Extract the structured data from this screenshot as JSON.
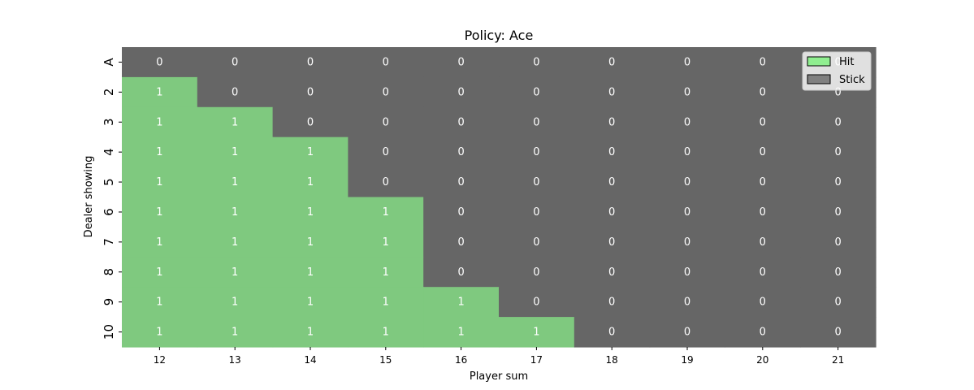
{
  "chart_data": {
    "type": "heatmap",
    "title": "Policy: Ace",
    "xlabel": "Player sum",
    "ylabel": "Dealer showing",
    "x_categories": [
      "12",
      "13",
      "14",
      "15",
      "16",
      "17",
      "18",
      "19",
      "20",
      "21"
    ],
    "y_categories": [
      "A",
      "2",
      "3",
      "4",
      "5",
      "6",
      "7",
      "8",
      "9",
      "10"
    ],
    "values": [
      [
        0,
        0,
        0,
        0,
        0,
        0,
        0,
        0,
        0,
        0
      ],
      [
        1,
        0,
        0,
        0,
        0,
        0,
        0,
        0,
        0,
        0
      ],
      [
        1,
        1,
        0,
        0,
        0,
        0,
        0,
        0,
        0,
        0
      ],
      [
        1,
        1,
        1,
        0,
        0,
        0,
        0,
        0,
        0,
        0
      ],
      [
        1,
        1,
        1,
        0,
        0,
        0,
        0,
        0,
        0,
        0
      ],
      [
        1,
        1,
        1,
        1,
        0,
        0,
        0,
        0,
        0,
        0
      ],
      [
        1,
        1,
        1,
        1,
        0,
        0,
        0,
        0,
        0,
        0
      ],
      [
        1,
        1,
        1,
        1,
        0,
        0,
        0,
        0,
        0,
        0
      ],
      [
        1,
        1,
        1,
        1,
        1,
        0,
        0,
        0,
        0,
        0
      ],
      [
        1,
        1,
        1,
        1,
        1,
        1,
        0,
        0,
        0,
        0
      ]
    ],
    "color_map": {
      "1": "#7fc97f",
      "0": "#666666"
    },
    "legend": {
      "placement": "top-right",
      "items": [
        {
          "label": "Hit",
          "color": "#90ee90"
        },
        {
          "label": "Stick",
          "color": "#808080"
        }
      ]
    },
    "annot_color": "#ffffff"
  }
}
